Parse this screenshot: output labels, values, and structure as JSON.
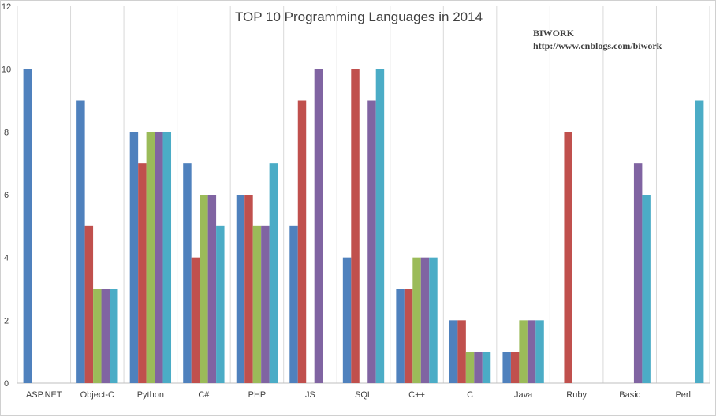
{
  "chart_data": {
    "type": "bar",
    "title": "TOP 10  Programming Languages in 2014",
    "watermark": [
      "BIWORK",
      "http://www.cnblogs.com/biwork"
    ],
    "xlabel": "",
    "ylabel": "",
    "ylim": [
      0,
      12
    ],
    "yticks": [
      "0",
      "2",
      "4",
      "6",
      "8",
      "10",
      "12"
    ],
    "grid": "vertical",
    "legend": "none",
    "categories": [
      "ASP.NET",
      "Object-C",
      "Python",
      "C#",
      "PHP",
      "JS",
      "SQL",
      "C++",
      "C",
      "Java",
      "Ruby",
      "Basic",
      "Perl"
    ],
    "series": [
      {
        "color": "#4f81bd",
        "values": [
          10,
          9,
          8,
          7,
          6,
          5,
          4,
          3,
          2,
          1,
          null,
          null,
          null
        ]
      },
      {
        "color": "#c0504d",
        "values": [
          null,
          5,
          7,
          4,
          6,
          9,
          10,
          3,
          2,
          1,
          8,
          null,
          null
        ]
      },
      {
        "color": "#9bbb59",
        "values": [
          null,
          3,
          8,
          6,
          5,
          null,
          null,
          4,
          1,
          2,
          null,
          null,
          null
        ]
      },
      {
        "color": "#8064a2",
        "values": [
          null,
          3,
          8,
          6,
          5,
          10,
          9,
          4,
          1,
          2,
          null,
          7,
          null
        ]
      },
      {
        "color": "#4bacc6",
        "values": [
          null,
          3,
          8,
          5,
          7,
          null,
          10,
          4,
          1,
          2,
          null,
          6,
          9
        ]
      }
    ]
  }
}
